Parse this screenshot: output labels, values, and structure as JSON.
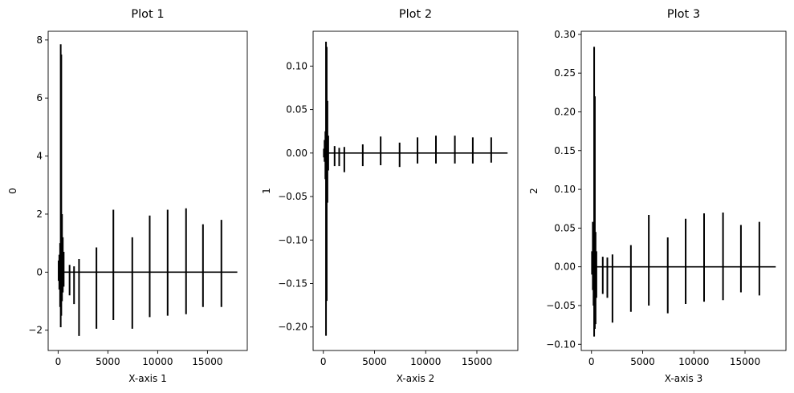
{
  "figure": {
    "background": "#ffffff",
    "line_color": "#000000"
  },
  "chart_data": [
    {
      "type": "line",
      "title": "Plot 1",
      "xlabel": "X-axis 1",
      "ylabel": "0",
      "xlim": [
        -1000,
        19000
      ],
      "ylim": [
        -2.7,
        8.3
      ],
      "xticks": [
        0,
        5000,
        10000,
        15000
      ],
      "xtick_labels": [
        "0",
        "5000",
        "10000",
        "15000"
      ],
      "yticks": [
        -2,
        0,
        2,
        4,
        6,
        8
      ],
      "ytick_labels": [
        "−2",
        "0",
        "2",
        "4",
        "6",
        "8"
      ],
      "grid": false,
      "series": [
        {
          "color": "#000000",
          "baseline": 0,
          "x_range": [
            0,
            18000
          ],
          "spikes": [
            {
              "x": 50,
              "min": -0.3,
              "max": 0.4
            },
            {
              "x": 120,
              "min": -0.6,
              "max": 0.6
            },
            {
              "x": 200,
              "min": -1.2,
              "max": 1.0
            },
            {
              "x": 260,
              "min": -1.9,
              "max": 7.85
            },
            {
              "x": 320,
              "min": -1.5,
              "max": 7.5
            },
            {
              "x": 390,
              "min": -1.0,
              "max": 2.0
            },
            {
              "x": 470,
              "min": -0.7,
              "max": 1.2
            },
            {
              "x": 560,
              "min": -0.5,
              "max": 0.7
            },
            {
              "x": 1150,
              "min": -0.8,
              "max": 0.25
            },
            {
              "x": 1600,
              "min": -1.1,
              "max": 0.2
            },
            {
              "x": 2100,
              "min": -2.2,
              "max": 0.45
            },
            {
              "x": 3850,
              "min": -1.95,
              "max": 0.85
            },
            {
              "x": 5550,
              "min": -1.65,
              "max": 2.15
            },
            {
              "x": 7450,
              "min": -1.95,
              "max": 1.2
            },
            {
              "x": 9200,
              "min": -1.55,
              "max": 1.95
            },
            {
              "x": 11000,
              "min": -1.5,
              "max": 2.15
            },
            {
              "x": 12850,
              "min": -1.45,
              "max": 2.2
            },
            {
              "x": 14550,
              "min": -1.2,
              "max": 1.65
            },
            {
              "x": 16400,
              "min": -1.2,
              "max": 1.8
            }
          ]
        }
      ]
    },
    {
      "type": "line",
      "title": "Plot 2",
      "xlabel": "X-axis 2",
      "ylabel": "1",
      "xlim": [
        -1000,
        19000
      ],
      "ylim": [
        -0.227,
        0.14
      ],
      "xticks": [
        0,
        5000,
        10000,
        15000
      ],
      "xtick_labels": [
        "0",
        "5000",
        "10000",
        "15000"
      ],
      "yticks": [
        -0.2,
        -0.15,
        -0.1,
        -0.05,
        0.0,
        0.05,
        0.1
      ],
      "ytick_labels": [
        "−0.20",
        "−0.15",
        "−0.10",
        "−0.05",
        "0.00",
        "0.05",
        "0.10"
      ],
      "grid": false,
      "series": [
        {
          "color": "#000000",
          "baseline": 0,
          "x_range": [
            0,
            18000
          ],
          "spikes": [
            {
              "x": 50,
              "min": -0.005,
              "max": 0.005
            },
            {
              "x": 120,
              "min": -0.01,
              "max": 0.015
            },
            {
              "x": 200,
              "min": -0.03,
              "max": 0.025
            },
            {
              "x": 260,
              "min": -0.21,
              "max": 0.128
            },
            {
              "x": 330,
              "min": -0.17,
              "max": 0.122
            },
            {
              "x": 400,
              "min": -0.057,
              "max": 0.06
            },
            {
              "x": 480,
              "min": -0.02,
              "max": 0.02
            },
            {
              "x": 1100,
              "min": -0.015,
              "max": 0.008
            },
            {
              "x": 1550,
              "min": -0.015,
              "max": 0.006
            },
            {
              "x": 2050,
              "min": -0.022,
              "max": 0.007
            },
            {
              "x": 3850,
              "min": -0.015,
              "max": 0.01
            },
            {
              "x": 5600,
              "min": -0.014,
              "max": 0.019
            },
            {
              "x": 7450,
              "min": -0.016,
              "max": 0.012
            },
            {
              "x": 9200,
              "min": -0.012,
              "max": 0.018
            },
            {
              "x": 11000,
              "min": -0.012,
              "max": 0.02
            },
            {
              "x": 12850,
              "min": -0.012,
              "max": 0.02
            },
            {
              "x": 14600,
              "min": -0.012,
              "max": 0.018
            },
            {
              "x": 16400,
              "min": -0.011,
              "max": 0.018
            }
          ]
        }
      ]
    },
    {
      "type": "line",
      "title": "Plot 3",
      "xlabel": "X-axis 3",
      "ylabel": "2",
      "xlim": [
        -1000,
        19000
      ],
      "ylim": [
        -0.108,
        0.304
      ],
      "xticks": [
        0,
        5000,
        10000,
        15000
      ],
      "xtick_labels": [
        "0",
        "5000",
        "10000",
        "15000"
      ],
      "yticks": [
        -0.1,
        -0.05,
        0.0,
        0.05,
        0.1,
        0.15,
        0.2,
        0.25,
        0.3
      ],
      "ytick_labels": [
        "−0.10",
        "−0.05",
        "0.00",
        "0.05",
        "0.10",
        "0.15",
        "0.20",
        "0.25",
        "0.30"
      ],
      "grid": false,
      "series": [
        {
          "color": "#000000",
          "baseline": 0,
          "x_range": [
            0,
            18000
          ],
          "spikes": [
            {
              "x": 50,
              "min": -0.01,
              "max": 0.02
            },
            {
              "x": 130,
              "min": -0.03,
              "max": 0.058
            },
            {
              "x": 200,
              "min": -0.05,
              "max": 0.045
            },
            {
              "x": 260,
              "min": -0.09,
              "max": 0.284
            },
            {
              "x": 330,
              "min": -0.08,
              "max": 0.22
            },
            {
              "x": 400,
              "min": -0.074,
              "max": 0.045
            },
            {
              "x": 480,
              "min": -0.04,
              "max": 0.02
            },
            {
              "x": 1100,
              "min": -0.035,
              "max": 0.013
            },
            {
              "x": 1550,
              "min": -0.04,
              "max": 0.012
            },
            {
              "x": 2050,
              "min": -0.072,
              "max": 0.016
            },
            {
              "x": 3850,
              "min": -0.058,
              "max": 0.028
            },
            {
              "x": 5600,
              "min": -0.05,
              "max": 0.067
            },
            {
              "x": 7450,
              "min": -0.06,
              "max": 0.038
            },
            {
              "x": 9200,
              "min": -0.048,
              "max": 0.062
            },
            {
              "x": 11000,
              "min": -0.045,
              "max": 0.069
            },
            {
              "x": 12850,
              "min": -0.043,
              "max": 0.07
            },
            {
              "x": 14600,
              "min": -0.033,
              "max": 0.054
            },
            {
              "x": 16400,
              "min": -0.037,
              "max": 0.058
            }
          ]
        }
      ]
    }
  ]
}
